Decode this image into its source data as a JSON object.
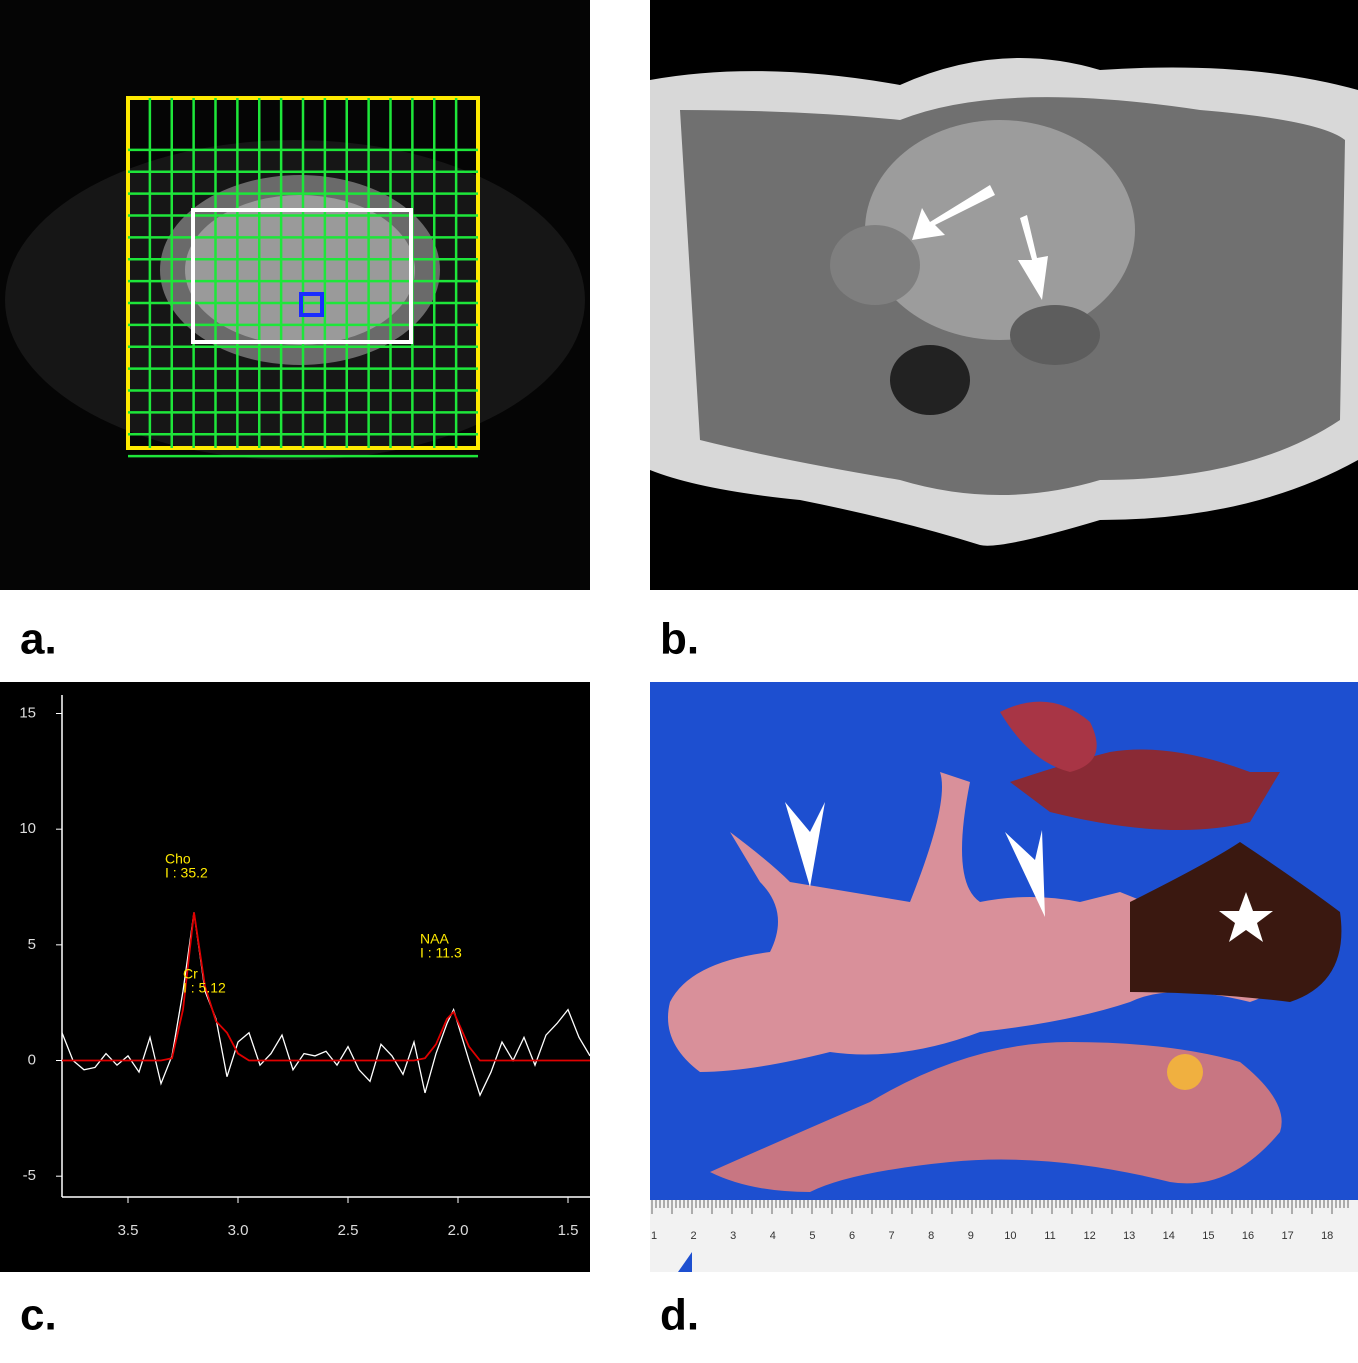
{
  "panels": [
    {
      "label": "a."
    },
    {
      "label": "b."
    },
    {
      "label": "c."
    },
    {
      "label": "d."
    }
  ],
  "chart_data": {
    "type": "line",
    "x": [
      3.8,
      3.75,
      3.7,
      3.65,
      3.6,
      3.55,
      3.5,
      3.45,
      3.4,
      3.35,
      3.3,
      3.25,
      3.2,
      3.15,
      3.1,
      3.05,
      3.0,
      2.95,
      2.9,
      2.85,
      2.8,
      2.75,
      2.7,
      2.65,
      2.6,
      2.55,
      2.5,
      2.45,
      2.4,
      2.35,
      2.3,
      2.25,
      2.2,
      2.15,
      2.1,
      2.05,
      2.02,
      1.95,
      1.9,
      1.85,
      1.8,
      1.75,
      1.7,
      1.65,
      1.6,
      1.55,
      1.5,
      1.45,
      1.4
    ],
    "series": [
      {
        "color": "#ffffff",
        "values": [
          1.2,
          0,
          -0.4,
          -0.3,
          0.3,
          -0.2,
          0.2,
          -0.5,
          1,
          -1,
          0.2,
          3,
          6.4,
          3,
          1.8,
          -0.7,
          0.8,
          1.2,
          -0.2,
          0.3,
          1.1,
          -0.4,
          0.3,
          0.2,
          0.4,
          -0.2,
          0.6,
          -0.4,
          -0.9,
          0.7,
          0.2,
          -0.6,
          0.8,
          -1.4,
          0.3,
          1.6,
          2.2,
          0,
          -1.5,
          -0.5,
          0.8,
          0,
          1,
          -0.2,
          1.1,
          1.6,
          2.2,
          1,
          0.2
        ]
      },
      {
        "color": "#e00000",
        "values": [
          0,
          0,
          0,
          0,
          0,
          0,
          0,
          0,
          0,
          0,
          0.1,
          2.2,
          6.4,
          3.2,
          1.7,
          1.2,
          0.3,
          0,
          0,
          0,
          0,
          0,
          0,
          0,
          0,
          0,
          0,
          0,
          0,
          0,
          0,
          0,
          0,
          0.1,
          0.7,
          1.8,
          2.1,
          0.6,
          0,
          0,
          0,
          0,
          0,
          0,
          0,
          0,
          0,
          0,
          0
        ]
      }
    ],
    "annotations": [
      {
        "name": "Cho",
        "text": "I : 35.2",
        "x": 3.2
      },
      {
        "name": "Cr",
        "text": "I : 5.12",
        "x": 3.12
      },
      {
        "name": "NAA",
        "text": "I : 11.3",
        "x": 2.02
      }
    ],
    "xlim": [
      3.8,
      1.4
    ],
    "ylim": [
      -5.9,
      15.8
    ],
    "xticks": [
      3.5,
      {
        "value": 3,
        "label": "3.0"
      },
      2.5,
      {
        "value": 2,
        "label": "2.0"
      },
      1.5
    ],
    "yticks": [
      15,
      10,
      5,
      0,
      -5
    ]
  },
  "ruler_labels": [
    1,
    2,
    3,
    4,
    5,
    6,
    7,
    8,
    9,
    10,
    11,
    12,
    13,
    14,
    15,
    16,
    17,
    18
  ]
}
